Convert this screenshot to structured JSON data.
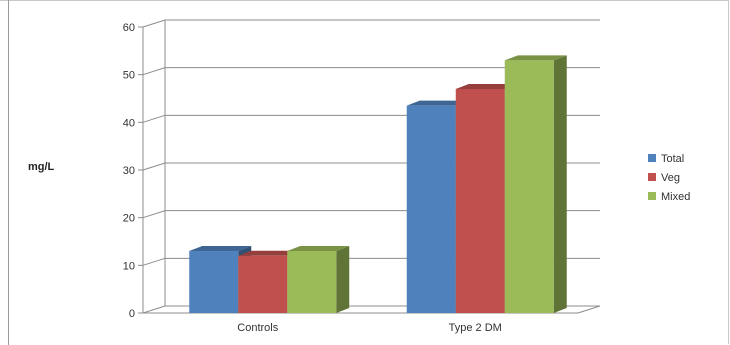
{
  "chart_data": {
    "type": "bar",
    "style": "3d-clustered-column",
    "categories": [
      "Controls",
      "Type 2 DM"
    ],
    "series": [
      {
        "name": "Total",
        "values": [
          13,
          43.5
        ],
        "color": "#4f81bd"
      },
      {
        "name": "Veg",
        "values": [
          12,
          47
        ],
        "color": "#c0504d"
      },
      {
        "name": "Mixed",
        "values": [
          13,
          53
        ],
        "color": "#9bbb59"
      }
    ],
    "title": "",
    "xlabel": "",
    "ylabel": "mg/L",
    "ylim": [
      0,
      60
    ],
    "yticks": [
      0,
      10,
      20,
      30,
      40,
      50,
      60
    ],
    "grid": true,
    "legend": "right"
  }
}
